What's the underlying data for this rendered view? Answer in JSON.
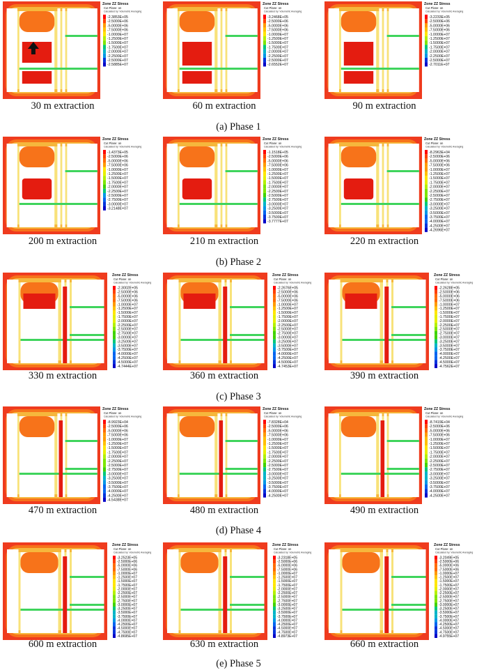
{
  "legend_title": "Zone ZZ Stress",
  "legend_subtitle": "Cut Plane: on",
  "legend_note": "Calculated by: Volumetric Averaging",
  "colors": {
    "bg": "#ef3b1e",
    "zone_red": "#e41c10",
    "zone_orange": "#f7731a",
    "zone_yellow": "#f6b73c",
    "zone_lightyellow": "#f8e27a",
    "zone_green": "#3fd45c",
    "void": "#ffffff"
  },
  "legend_scale": [
    "#ff0000",
    "#ff4000",
    "#ff6a00",
    "#ff9a00",
    "#ffc000",
    "#ffe600",
    "#e6f000",
    "#b4f000",
    "#7ee600",
    "#3fd200",
    "#00c878",
    "#00b4c8",
    "#0096e6",
    "#0064f0",
    "#0032dc",
    "#0000c8"
  ],
  "panels": [
    {
      "caption": "30 m extraction",
      "legend": [
        "-2.3853E+05",
        "-2.5000E+06",
        "-5.0000E+06",
        "-7.5000E+06",
        "-1.0000E+07",
        "-1.2500E+07",
        "-1.5000E+07",
        "-1.7500E+07",
        "-2.0000E+07",
        "-2.2500E+07",
        "-2.5000E+07",
        "-2.5885E+07"
      ]
    },
    {
      "caption": "60 m extraction",
      "legend": [
        "-3.2468E+05",
        "-2.5000E+06",
        "-5.0000E+06",
        "-7.5000E+06",
        "-1.0000E+07",
        "-1.2500E+07",
        "-1.5000E+07",
        "-1.7500E+07",
        "-2.0000E+07",
        "-2.2500E+07",
        "-2.5000E+07",
        "-2.6552E+07"
      ]
    },
    {
      "caption": "90 m extraction",
      "legend": [
        "-3.2233E+05",
        "-2.5000E+06",
        "-5.0000E+06",
        "-7.5000E+06",
        "-1.0000E+07",
        "-1.2500E+07",
        "-1.5000E+07",
        "-1.7500E+07",
        "-2.0000E+07",
        "-2.2500E+07",
        "-2.5000E+07",
        "-2.7011E+07"
      ]
    },
    {
      "caption": "200 m extraction",
      "legend": [
        "-1.4373E+05",
        "-2.5000E+06",
        "-5.0000E+06",
        "-7.5000E+06",
        "-1.0000E+07",
        "-1.2500E+07",
        "-1.5000E+07",
        "-1.7500E+07",
        "-2.0000E+07",
        "-2.2500E+07",
        "-2.5000E+07",
        "-2.7500E+07",
        "-3.0000E+07",
        "-3.2148E+07"
      ]
    },
    {
      "caption": "210 m extraction",
      "legend": [
        "-1.1518E+05",
        "-2.5000E+06",
        "-5.0000E+06",
        "-7.5000E+06",
        "-1.0000E+07",
        "-1.2500E+07",
        "-1.5000E+07",
        "-1.7500E+07",
        "-2.0000E+07",
        "-2.2500E+07",
        "-2.5000E+07",
        "-2.7500E+07",
        "-3.0000E+07",
        "-3.2500E+07",
        "-3.5000E+07",
        "-3.7500E+07",
        "-3.7777E+07"
      ]
    },
    {
      "caption": "220 m extraction",
      "legend": [
        "-8.2963E+04",
        "-2.5000E+06",
        "-5.0000E+06",
        "-7.5000E+06",
        "-1.0000E+07",
        "-1.2500E+07",
        "-1.5000E+07",
        "-1.7500E+07",
        "-2.0000E+07",
        "-2.2500E+07",
        "-2.5000E+07",
        "-2.7500E+07",
        "-3.0000E+07",
        "-3.2500E+07",
        "-3.5000E+07",
        "-3.7500E+07",
        "-4.0000E+07",
        "-4.2500E+07",
        "-4.2696E+07"
      ]
    },
    {
      "caption": "330 m extraction",
      "legend": [
        "-2.3002E+05",
        "-2.5000E+06",
        "-5.0000E+06",
        "-7.5000E+06",
        "-1.0000E+07",
        "-1.2500E+07",
        "-1.5000E+07",
        "-1.7500E+07",
        "-2.0000E+07",
        "-2.2500E+07",
        "-2.5000E+07",
        "-2.7500E+07",
        "-3.0000E+07",
        "-3.2500E+07",
        "-3.5000E+07",
        "-3.7500E+07",
        "-4.0000E+07",
        "-4.2500E+07",
        "-4.5000E+07",
        "-4.7444E+07"
      ]
    },
    {
      "caption": "360 m extraction",
      "legend": [
        "-2.2676E+05",
        "-2.5000E+06",
        "-5.0000E+06",
        "-7.5000E+06",
        "-1.0000E+07",
        "-1.2500E+07",
        "-1.5000E+07",
        "-1.7500E+07",
        "-2.0000E+07",
        "-2.2500E+07",
        "-2.5000E+07",
        "-2.7500E+07",
        "-3.0000E+07",
        "-3.2500E+07",
        "-3.5000E+07",
        "-3.7500E+07",
        "-4.0000E+07",
        "-4.2500E+07",
        "-4.5000E+07",
        "-4.7453E+07"
      ]
    },
    {
      "caption": "390 m extraction",
      "legend": [
        "-2.2628E+05",
        "-2.5000E+06",
        "-5.0000E+06",
        "-7.5000E+06",
        "-1.0000E+07",
        "-1.2500E+07",
        "-1.5000E+07",
        "-1.7500E+07",
        "-2.0000E+07",
        "-2.2500E+07",
        "-2.5000E+07",
        "-2.7500E+07",
        "-3.0000E+07",
        "-3.2500E+07",
        "-3.5000E+07",
        "-3.7500E+07",
        "-4.0000E+07",
        "-4.2500E+07",
        "-4.5000E+07",
        "-4.7562E+07"
      ]
    },
    {
      "caption": "470 m extraction",
      "legend": [
        "-8.9923E+04",
        "-2.5000E+06",
        "-5.0000E+06",
        "-7.5000E+06",
        "-1.0000E+07",
        "-1.2500E+07",
        "-1.5000E+07",
        "-1.7500E+07",
        "-2.0000E+07",
        "-2.2500E+07",
        "-2.5000E+07",
        "-2.7500E+07",
        "-3.0000E+07",
        "-3.2500E+07",
        "-3.5000E+07",
        "-3.7500E+07",
        "-4.0000E+07",
        "-4.2500E+07",
        "-4.5438E+07"
      ]
    },
    {
      "caption": "480 m extraction",
      "legend": [
        "-7.8328E+04",
        "-2.5000E+06",
        "-5.0000E+06",
        "-7.5000E+06",
        "-1.0000E+07",
        "-1.2500E+07",
        "-1.5000E+07",
        "-1.7500E+07",
        "-2.0000E+07",
        "-2.2500E+07",
        "-2.5000E+07",
        "-2.7500E+07",
        "-3.0000E+07",
        "-3.2500E+07",
        "-3.5000E+07",
        "-3.7500E+07",
        "-4.0000E+07",
        "-4.2500E+07"
      ]
    },
    {
      "caption": "490 m extraction",
      "legend": [
        "-8.7419E+04",
        "-2.5000E+06",
        "-5.0000E+06",
        "-7.5000E+06",
        "-1.0000E+07",
        "-1.2500E+07",
        "-1.5000E+07",
        "-1.7500E+07",
        "-2.0000E+07",
        "-2.2500E+07",
        "-2.5000E+07",
        "-2.7500E+07",
        "-3.0000E+07",
        "-3.2500E+07",
        "-3.5000E+07",
        "-3.7500E+07",
        "-4.0000E+07",
        "-4.2500E+07"
      ]
    },
    {
      "caption": "600 m extraction",
      "legend": [
        "-3.2523E+05",
        "-2.5000E+06",
        "-5.0000E+06",
        "-7.5000E+06",
        "-1.0000E+07",
        "-1.2500E+07",
        "-1.5000E+07",
        "-1.7500E+07",
        "-2.0000E+07",
        "-2.2500E+07",
        "-2.5000E+07",
        "-2.7500E+07",
        "-3.0000E+07",
        "-3.2500E+07",
        "-3.5000E+07",
        "-3.7500E+07",
        "-4.0000E+07",
        "-4.2500E+07",
        "-4.5000E+07",
        "-4.7500E+07",
        "-4.8695E+07"
      ]
    },
    {
      "caption": "630 m extraction",
      "legend": [
        "-3.2318E+05",
        "-2.5000E+06",
        "-5.0000E+06",
        "-7.5000E+06",
        "-1.0000E+07",
        "-1.2500E+07",
        "-1.5000E+07",
        "-1.7500E+07",
        "-2.0000E+07",
        "-2.2500E+07",
        "-2.5000E+07",
        "-2.7500E+07",
        "-3.0000E+07",
        "-3.2500E+07",
        "-3.5000E+07",
        "-3.7500E+07",
        "-4.0000E+07",
        "-4.2500E+07",
        "-4.5000E+07",
        "-4.7500E+07",
        "-4.8973E+07"
      ]
    },
    {
      "caption": "660 m extraction",
      "legend": [
        "-3.2049E+05",
        "-2.5000E+06",
        "-5.0000E+06",
        "-7.5000E+06",
        "-1.0000E+07",
        "-1.2500E+07",
        "-1.5000E+07",
        "-1.7500E+07",
        "-2.0000E+07",
        "-2.2500E+07",
        "-2.5000E+07",
        "-2.7500E+07",
        "-3.0000E+07",
        "-3.2500E+07",
        "-3.5000E+07",
        "-3.7500E+07",
        "-4.0000E+07",
        "-4.2500E+07",
        "-4.5000E+07",
        "-4.7500E+07",
        "-4.9755E+07"
      ]
    }
  ],
  "phases": [
    "(a) Phase 1",
    "(b) Phase 2",
    "(c) Phase 3",
    "(d) Phase 4",
    "(e) Phase 5"
  ]
}
